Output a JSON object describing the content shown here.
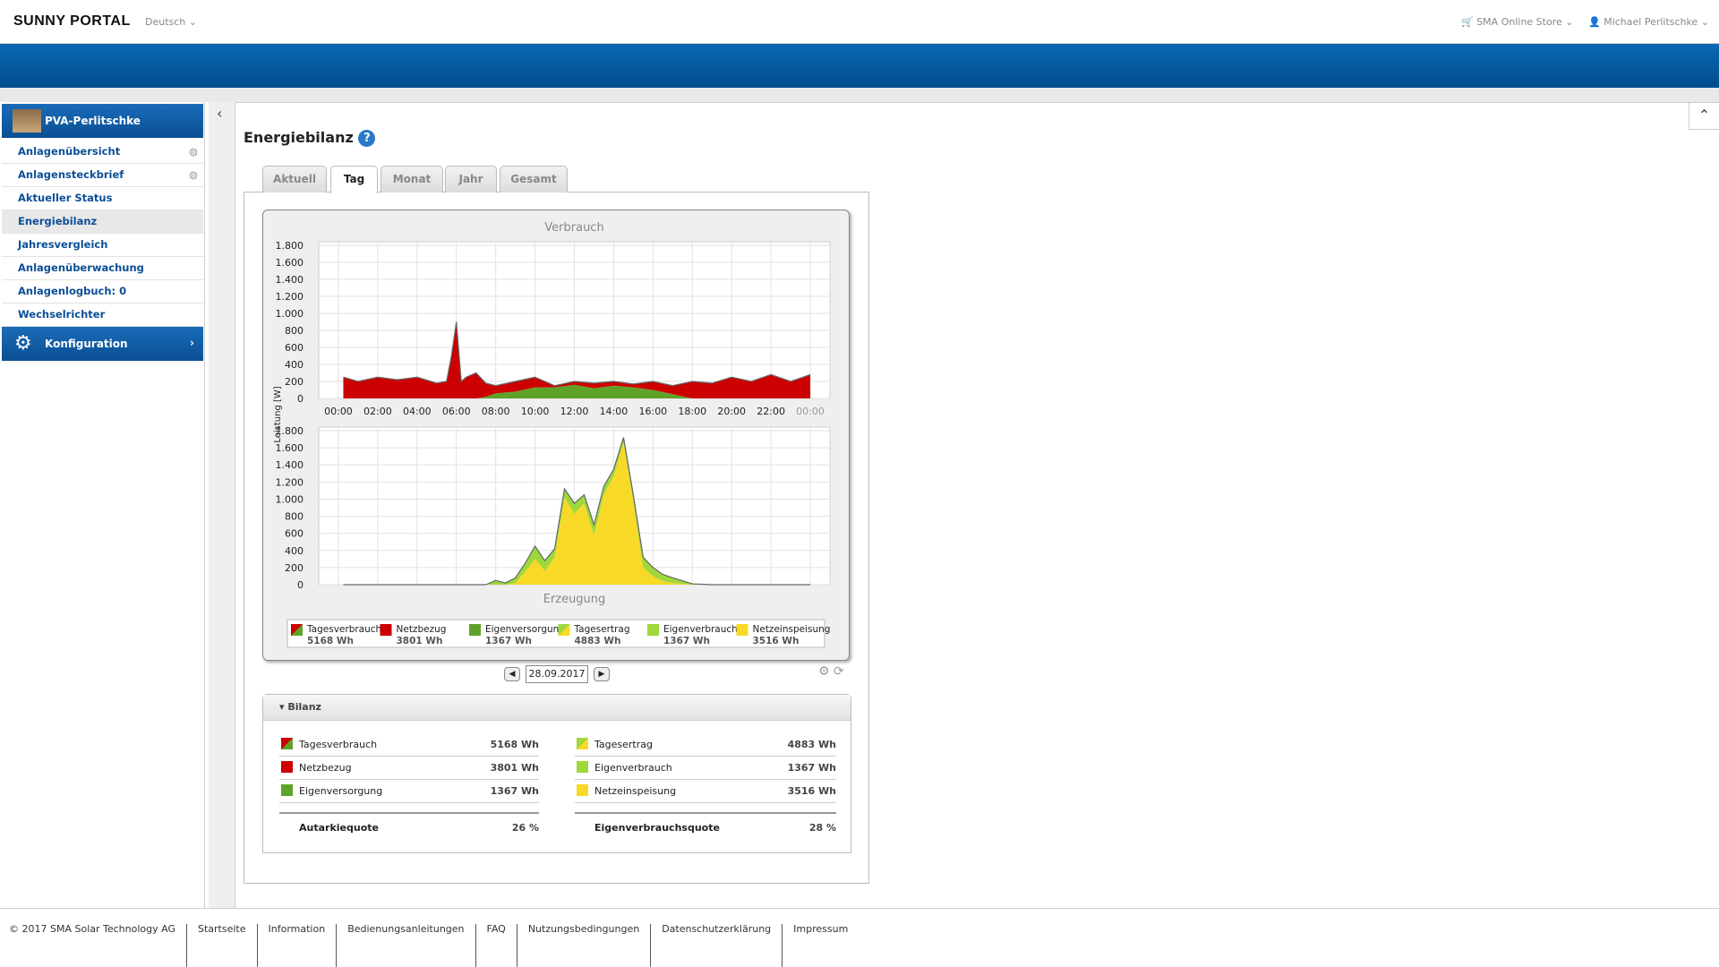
{
  "header": {
    "logo": "SUNNY PORTAL",
    "language": "Deutsch",
    "store": "SMA Online Store",
    "user": "Michael Perlitschke"
  },
  "nav": {
    "plant": "PVA-Perlitschke",
    "items": [
      "Anlagenübersicht",
      "Anlagensteckbrief",
      "Aktueller Status",
      "Energiebilanz",
      "Jahresvergleich",
      "Anlagenüberwachung",
      "Anlagenlogbuch: 0",
      "Wechselrichter"
    ],
    "config": "Konfiguration"
  },
  "page": {
    "title": "Energiebilanz",
    "tabs": [
      "Aktuell",
      "Tag",
      "Monat",
      "Jahr",
      "Gesamt"
    ]
  },
  "chart_data": [
    {
      "type": "area",
      "stacked": true,
      "title": "Verbrauch",
      "y_label": "Leistung [W]",
      "grid": true,
      "x": [
        0.25,
        1,
        2,
        3,
        4,
        5,
        5.5,
        5.75,
        6,
        6.25,
        6.5,
        7,
        7.5,
        8,
        9,
        10,
        11,
        12,
        13,
        14,
        15,
        16,
        17,
        18,
        19,
        20,
        21,
        22,
        23,
        24
      ],
      "xlim": [
        -1,
        25
      ],
      "xticks": [
        {
          "value": 0,
          "label": "00:00"
        },
        {
          "value": 2,
          "label": "02:00"
        },
        {
          "value": 4,
          "label": "04:00"
        },
        {
          "value": 6,
          "label": "06:00"
        },
        {
          "value": 8,
          "label": "08:00"
        },
        {
          "value": 10,
          "label": "10:00"
        },
        {
          "value": 12,
          "label": "12:00"
        },
        {
          "value": 14,
          "label": "14:00"
        },
        {
          "value": 16,
          "label": "16:00"
        },
        {
          "value": 18,
          "label": "18:00"
        },
        {
          "value": 20,
          "label": "20:00"
        },
        {
          "value": 22,
          "label": "22:00"
        },
        {
          "value": 24,
          "label": "00:00"
        }
      ],
      "ylim": [
        0,
        1800
      ],
      "yticks": [
        0,
        200,
        400,
        600,
        800,
        {
          "value": 1000,
          "label": "1.000"
        },
        {
          "value": 1200,
          "label": "1.200"
        },
        {
          "value": 1400,
          "label": "1.400"
        },
        {
          "value": 1600,
          "label": "1.600"
        },
        {
          "value": 1800,
          "label": "1.800"
        }
      ],
      "series": [
        {
          "name": "Eigenversorgung",
          "color": "#5fa22a",
          "values": [
            0,
            0,
            0,
            0,
            0,
            0,
            0,
            0,
            0,
            0,
            0,
            0,
            20,
            60,
            80,
            130,
            130,
            160,
            120,
            150,
            130,
            100,
            50,
            0,
            0,
            0,
            0,
            0,
            0,
            0
          ]
        },
        {
          "name": "Netzbezug",
          "color": "#cc0000",
          "values": [
            250,
            200,
            250,
            220,
            250,
            180,
            200,
            500,
            900,
            200,
            250,
            300,
            160,
            90,
            120,
            120,
            20,
            40,
            60,
            50,
            40,
            100,
            100,
            200,
            180,
            250,
            200,
            280,
            200,
            280
          ]
        }
      ]
    },
    {
      "type": "area",
      "stacked": true,
      "title": "Erzeugung",
      "grid": true,
      "x": [
        0.25,
        1,
        2,
        3,
        4,
        5,
        6,
        7,
        7.5,
        8,
        8.5,
        9,
        9.5,
        10,
        10.5,
        11,
        11.5,
        12,
        12.5,
        13,
        13.5,
        14,
        14.5,
        15,
        15.5,
        16,
        16.5,
        17,
        18,
        19,
        20,
        21,
        22,
        23,
        24
      ],
      "xlim": [
        -1,
        25
      ],
      "ylim": [
        0,
        1800
      ],
      "yticks": [
        0,
        200,
        400,
        600,
        800,
        {
          "value": 1000,
          "label": "1.000"
        },
        {
          "value": 1200,
          "label": "1.200"
        },
        {
          "value": 1400,
          "label": "1.400"
        },
        {
          "value": 1600,
          "label": "1.600"
        },
        {
          "value": 1800,
          "label": "1.800"
        }
      ],
      "series": [
        {
          "name": "Netzeinspeisung",
          "color": "#f8d927",
          "values": [
            0,
            0,
            0,
            0,
            0,
            0,
            0,
            0,
            0,
            0,
            0,
            20,
            150,
            300,
            160,
            320,
            1020,
            830,
            950,
            580,
            1050,
            1270,
            1660,
            970,
            200,
            100,
            40,
            20,
            0,
            0,
            0,
            0,
            0,
            0,
            0
          ]
        },
        {
          "name": "Eigenverbrauch",
          "color": "#9ed83a",
          "values": [
            0,
            0,
            0,
            0,
            0,
            0,
            0,
            0,
            0,
            50,
            20,
            60,
            100,
            150,
            120,
            100,
            100,
            120,
            100,
            120,
            100,
            80,
            60,
            80,
            120,
            100,
            80,
            60,
            10,
            0,
            0,
            0,
            0,
            0,
            0
          ]
        }
      ]
    }
  ],
  "legend": [
    {
      "name": "Tagesverbrauch",
      "value": "5168 Wh"
    },
    {
      "name": "Netzbezug",
      "value": "3801 Wh"
    },
    {
      "name": "Eigenversorgung",
      "value": "1367 Wh"
    },
    {
      "name": "Tagesertrag",
      "value": "4883 Wh"
    },
    {
      "name": "Eigenverbrauch",
      "value": "1367 Wh"
    },
    {
      "name": "Netzeinspeisung",
      "value": "3516 Wh"
    }
  ],
  "date": "28.09.2017",
  "bilanz": {
    "title": "Bilanz",
    "left": [
      [
        "Tagesverbrauch",
        "5168 Wh"
      ],
      [
        "Netzbezug",
        "3801 Wh"
      ],
      [
        "Eigenversorgung",
        "1367 Wh"
      ]
    ],
    "left_quota": [
      "Autarkiequote",
      "26 %"
    ],
    "right": [
      [
        "Tagesertrag",
        "4883 Wh"
      ],
      [
        "Eigenverbrauch",
        "1367 Wh"
      ],
      [
        "Netzeinspeisung",
        "3516 Wh"
      ]
    ],
    "right_quota": [
      "Eigenverbrauchsquote",
      "28 %"
    ]
  },
  "footer": [
    "© 2017 SMA Solar Technology AG",
    "Startseite",
    "Information",
    "Bedienungsanleitungen",
    "FAQ",
    "Nutzungsbedingungen",
    "Datenschutzerklärung",
    "Impressum"
  ]
}
